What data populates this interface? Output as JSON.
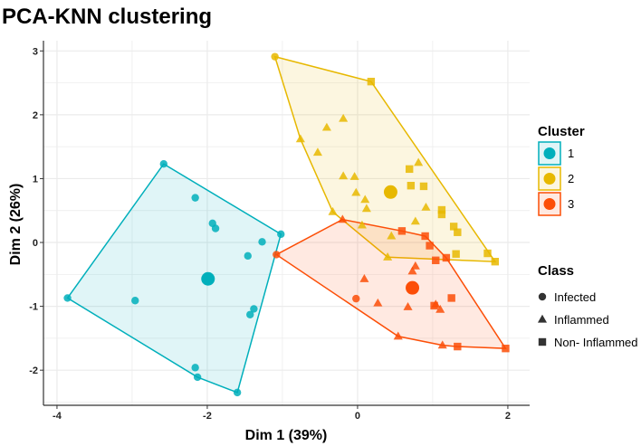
{
  "chart_data": {
    "type": "scatter",
    "title": "PCA-KNN clustering",
    "xlabel": "Dim 1 (39%)",
    "ylabel": "Dim 2 (26%)",
    "xlim": [
      -4.18,
      2.29
    ],
    "ylim": [
      -2.55,
      3.16
    ],
    "x_ticks": [
      -4,
      -2,
      0,
      2
    ],
    "y_ticks": [
      -2,
      -1,
      0,
      1,
      2,
      3
    ],
    "grid": true,
    "legends": {
      "cluster": {
        "title": "Cluster",
        "placement": "right",
        "entries": [
          "1",
          "2",
          "3"
        ]
      },
      "class": {
        "title": "Class",
        "placement": "right",
        "entries": [
          "Infected",
          "Inflammed",
          "Non- Inflammed"
        ]
      }
    },
    "class_shapes": {
      "Infected": "circle",
      "Inflammed": "triangle",
      "Non- Inflammed": "square"
    },
    "series": [
      {
        "name": "1",
        "color": "#00AFBB",
        "centroid": [
          -1.99,
          -0.57
        ],
        "points": [
          {
            "x": -2.58,
            "y": 1.23,
            "class": "Infected"
          },
          {
            "x": -2.16,
            "y": 0.7,
            "class": "Infected"
          },
          {
            "x": -1.93,
            "y": 0.3,
            "class": "Infected"
          },
          {
            "x": -1.89,
            "y": 0.22,
            "class": "Infected"
          },
          {
            "x": -1.02,
            "y": 0.13,
            "class": "Infected"
          },
          {
            "x": -1.27,
            "y": 0.01,
            "class": "Infected"
          },
          {
            "x": -1.46,
            "y": -0.21,
            "class": "Infected"
          },
          {
            "x": -3.86,
            "y": -0.87,
            "class": "Infected"
          },
          {
            "x": -2.96,
            "y": -0.91,
            "class": "Infected"
          },
          {
            "x": -1.38,
            "y": -1.04,
            "class": "Infected"
          },
          {
            "x": -1.43,
            "y": -1.13,
            "class": "Infected"
          },
          {
            "x": -2.16,
            "y": -1.96,
            "class": "Infected"
          },
          {
            "x": -2.13,
            "y": -2.11,
            "class": "Infected"
          },
          {
            "x": -1.6,
            "y": -2.35,
            "class": "Infected"
          }
        ]
      },
      {
        "name": "2",
        "color": "#E7B800",
        "centroid": [
          0.44,
          0.79
        ],
        "points": [
          {
            "x": -1.1,
            "y": 2.91,
            "class": "Infected"
          },
          {
            "x": 0.18,
            "y": 2.52,
            "class": "Non- Inflammed"
          },
          {
            "x": -0.19,
            "y": 1.94,
            "class": "Inflammed"
          },
          {
            "x": -0.41,
            "y": 1.8,
            "class": "Inflammed"
          },
          {
            "x": -0.76,
            "y": 1.62,
            "class": "Inflammed"
          },
          {
            "x": -0.53,
            "y": 1.41,
            "class": "Inflammed"
          },
          {
            "x": -0.19,
            "y": 1.04,
            "class": "Inflammed"
          },
          {
            "x": -0.04,
            "y": 1.03,
            "class": "Inflammed"
          },
          {
            "x": -0.02,
            "y": 0.78,
            "class": "Inflammed"
          },
          {
            "x": 0.1,
            "y": 0.67,
            "class": "Inflammed"
          },
          {
            "x": 0.12,
            "y": 0.53,
            "class": "Inflammed"
          },
          {
            "x": 0.81,
            "y": 1.25,
            "class": "Inflammed"
          },
          {
            "x": 0.91,
            "y": 0.55,
            "class": "Inflammed"
          },
          {
            "x": 0.77,
            "y": 0.33,
            "class": "Inflammed"
          },
          {
            "x": -0.33,
            "y": 0.48,
            "class": "Inflammed"
          },
          {
            "x": 0.06,
            "y": 0.27,
            "class": "Inflammed"
          },
          {
            "x": 0.45,
            "y": 0.1,
            "class": "Inflammed"
          },
          {
            "x": 0.4,
            "y": -0.23,
            "class": "Inflammed"
          },
          {
            "x": 0.69,
            "y": 1.15,
            "class": "Non- Inflammed"
          },
          {
            "x": 0.71,
            "y": 0.89,
            "class": "Non- Inflammed"
          },
          {
            "x": 0.88,
            "y": 0.88,
            "class": "Non- Inflammed"
          },
          {
            "x": 1.12,
            "y": 0.51,
            "class": "Non- Inflammed"
          },
          {
            "x": 1.12,
            "y": 0.44,
            "class": "Non- Inflammed"
          },
          {
            "x": 1.28,
            "y": 0.25,
            "class": "Non- Inflammed"
          },
          {
            "x": 1.33,
            "y": 0.16,
            "class": "Non- Inflammed"
          },
          {
            "x": 1.31,
            "y": -0.18,
            "class": "Non- Inflammed"
          },
          {
            "x": 1.73,
            "y": -0.17,
            "class": "Non- Inflammed"
          },
          {
            "x": 1.83,
            "y": -0.3,
            "class": "Non- Inflammed"
          }
        ]
      },
      {
        "name": "3",
        "color": "#FC4E07",
        "centroid": [
          0.73,
          -0.71
        ],
        "points": [
          {
            "x": -1.08,
            "y": -0.19,
            "class": "Infected"
          },
          {
            "x": -0.02,
            "y": -0.88,
            "class": "Infected"
          },
          {
            "x": -0.2,
            "y": 0.36,
            "class": "Inflammed"
          },
          {
            "x": 0.77,
            "y": -0.37,
            "class": "Inflammed"
          },
          {
            "x": 0.73,
            "y": -0.45,
            "class": "Inflammed"
          },
          {
            "x": 0.09,
            "y": -0.57,
            "class": "Inflammed"
          },
          {
            "x": 0.27,
            "y": -0.95,
            "class": "Inflammed"
          },
          {
            "x": 0.67,
            "y": -1.01,
            "class": "Inflammed"
          },
          {
            "x": 1.04,
            "y": -0.97,
            "class": "Inflammed"
          },
          {
            "x": 1.1,
            "y": -1.05,
            "class": "Inflammed"
          },
          {
            "x": 0.54,
            "y": -1.47,
            "class": "Inflammed"
          },
          {
            "x": 1.13,
            "y": -1.61,
            "class": "Inflammed"
          },
          {
            "x": 0.59,
            "y": 0.18,
            "class": "Non- Inflammed"
          },
          {
            "x": 0.9,
            "y": 0.1,
            "class": "Non- Inflammed"
          },
          {
            "x": 0.96,
            "y": -0.05,
            "class": "Non- Inflammed"
          },
          {
            "x": 1.04,
            "y": -0.28,
            "class": "Non- Inflammed"
          },
          {
            "x": 1.18,
            "y": -0.24,
            "class": "Non- Inflammed"
          },
          {
            "x": 1.25,
            "y": -0.87,
            "class": "Non- Inflammed"
          },
          {
            "x": 1.02,
            "y": -0.99,
            "class": "Non- Inflammed"
          },
          {
            "x": 1.33,
            "y": -1.63,
            "class": "Non- Inflammed"
          },
          {
            "x": 1.97,
            "y": -1.66,
            "class": "Non- Inflammed"
          }
        ]
      }
    ]
  }
}
